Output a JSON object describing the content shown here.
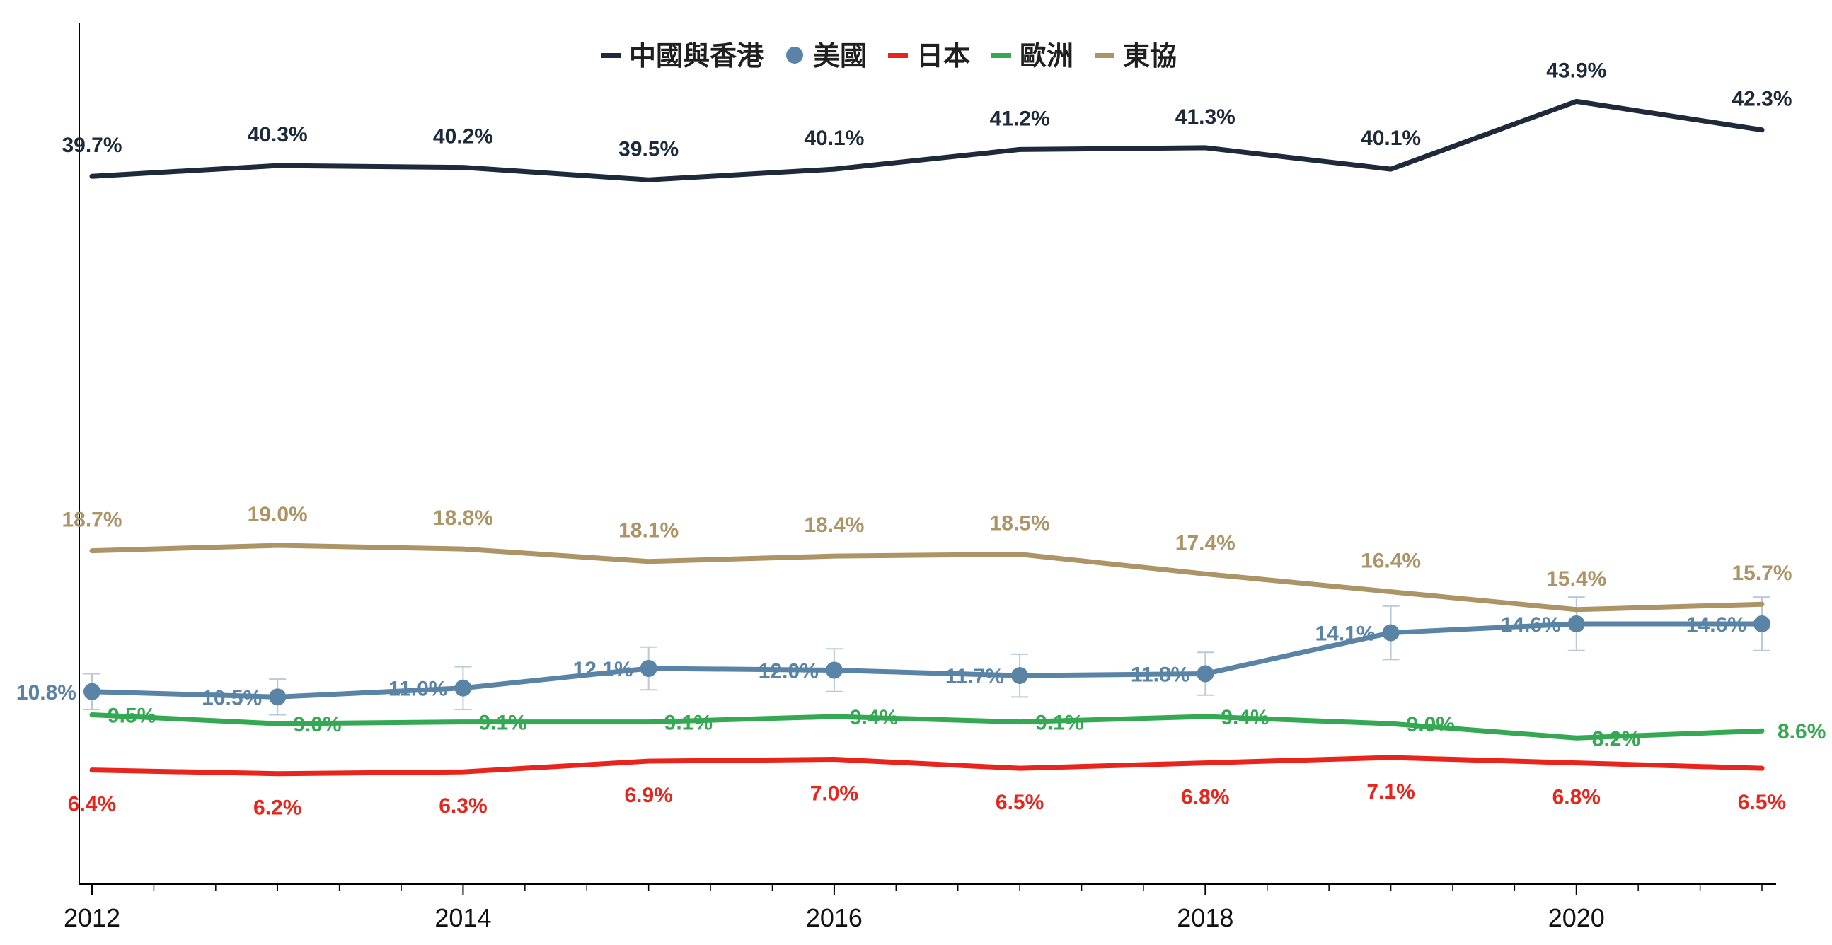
{
  "chart_data": {
    "type": "line",
    "title": "",
    "xlabel": "",
    "ylabel": "",
    "x": [
      2012,
      2013,
      2014,
      2015,
      2016,
      2017,
      2018,
      2019,
      2020,
      2021
    ],
    "x_ticks": [
      "2012",
      "2014",
      "2016",
      "2018",
      "2020"
    ],
    "ylim": [
      0,
      48
    ],
    "grid": false,
    "legend_position": "top-center",
    "series": [
      {
        "name": "中國與香港",
        "color": "#1e2a3a",
        "values": [
          39.7,
          40.3,
          40.2,
          39.5,
          40.1,
          41.2,
          41.3,
          40.1,
          43.9,
          42.3
        ],
        "labels": [
          "39.7%",
          "40.3%",
          "40.2%",
          "39.5%",
          "40.1%",
          "41.2%",
          "41.3%",
          "40.1%",
          "43.9%",
          "42.3%"
        ],
        "label_position": "above",
        "markers": false,
        "legend_symbol": "dash"
      },
      {
        "name": "美國",
        "color": "#5a84a6",
        "values": [
          10.8,
          10.5,
          11.0,
          12.1,
          12.0,
          11.7,
          11.8,
          14.1,
          14.6,
          14.6
        ],
        "labels": [
          "10.8%",
          "10.5%",
          "11.0%",
          "12.1%",
          "12.0%",
          "11.7%",
          "11.8%",
          "14.1%",
          "14.6%",
          "14.6%"
        ],
        "error": [
          1.0,
          1.0,
          1.2,
          1.2,
          1.2,
          1.2,
          1.2,
          1.5,
          1.5,
          1.5
        ],
        "label_position": "left",
        "markers": true,
        "legend_symbol": "dot"
      },
      {
        "name": "日本",
        "color": "#e8251c",
        "values": [
          6.4,
          6.2,
          6.3,
          6.9,
          7.0,
          6.5,
          6.8,
          7.1,
          6.8,
          6.5
        ],
        "labels": [
          "6.4%",
          "6.2%",
          "6.3%",
          "6.9%",
          "7.0%",
          "6.5%",
          "6.8%",
          "7.1%",
          "6.8%",
          "6.5%"
        ],
        "label_position": "below",
        "markers": false,
        "legend_symbol": "dash"
      },
      {
        "name": "歐洲",
        "color": "#34a853",
        "values": [
          9.5,
          9.0,
          9.1,
          9.1,
          9.4,
          9.1,
          9.4,
          9.0,
          8.2,
          8.6
        ],
        "labels": [
          "9.5%",
          "9.0%",
          "9.1%",
          "9.1%",
          "9.4%",
          "9.1%",
          "9.4%",
          "9.0%",
          "8.2%",
          "8.6%"
        ],
        "label_position": "right",
        "markers": false,
        "legend_symbol": "dash"
      },
      {
        "name": "東協",
        "color": "#ad9467",
        "values": [
          18.7,
          19.0,
          18.8,
          18.1,
          18.4,
          18.5,
          17.4,
          16.4,
          15.4,
          15.7
        ],
        "labels": [
          "18.7%",
          "19.0%",
          "18.8%",
          "18.1%",
          "18.4%",
          "18.5%",
          "17.4%",
          "16.4%",
          "15.4%",
          "15.7%"
        ],
        "label_position": "above",
        "markers": false,
        "legend_symbol": "dash"
      }
    ]
  }
}
